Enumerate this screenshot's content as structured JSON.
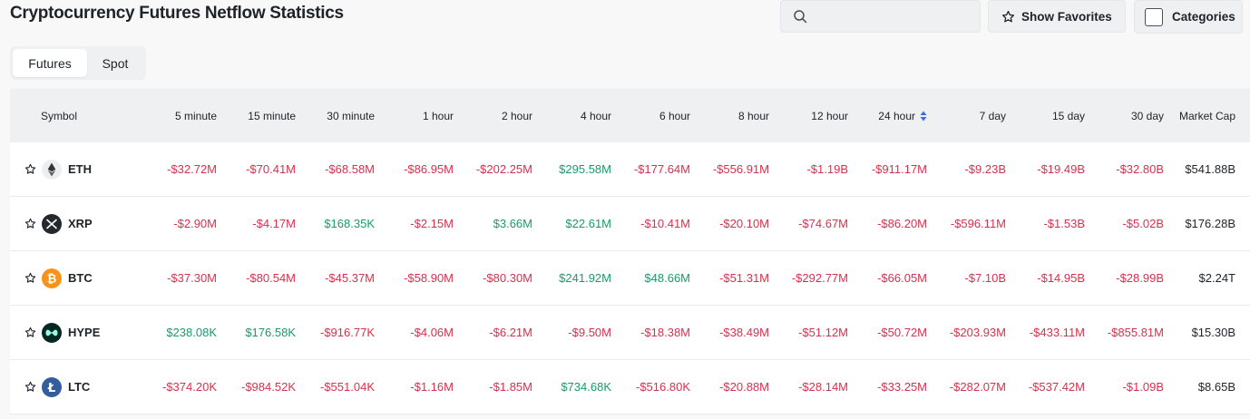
{
  "header": {
    "title": "Cryptocurrency Futures Netflow Statistics",
    "search_placeholder": "",
    "show_favorites_label": "Show Favorites",
    "categories_label": "Categories"
  },
  "tabs": [
    {
      "label": "Futures",
      "active": true
    },
    {
      "label": "Spot",
      "active": false
    }
  ],
  "table": {
    "columns": [
      "Symbol",
      "5 minute",
      "15 minute",
      "30 minute",
      "1 hour",
      "2 hour",
      "4 hour",
      "6 hour",
      "8 hour",
      "12 hour",
      "24 hour",
      "7 day",
      "15 day",
      "30 day",
      "Market Cap"
    ],
    "sorted_column": "24 hour",
    "rows": [
      {
        "symbol": "ETH",
        "icon": "eth-coin-icon",
        "values": [
          "-$32.72M",
          "-$70.41M",
          "-$68.58M",
          "-$86.95M",
          "-$202.25M",
          "$295.58M",
          "-$177.64M",
          "-$556.91M",
          "-$1.19B",
          "-$911.17M",
          "-$9.23B",
          "-$19.49B",
          "-$32.80B"
        ],
        "market_cap": "$541.88B"
      },
      {
        "symbol": "XRP",
        "icon": "xrp-coin-icon",
        "values": [
          "-$2.90M",
          "-$4.17M",
          "$168.35K",
          "-$2.15M",
          "$3.66M",
          "$22.61M",
          "-$10.41M",
          "-$20.10M",
          "-$74.67M",
          "-$86.20M",
          "-$596.11M",
          "-$1.53B",
          "-$5.02B"
        ],
        "market_cap": "$176.28B"
      },
      {
        "symbol": "BTC",
        "icon": "btc-coin-icon",
        "values": [
          "-$37.30M",
          "-$80.54M",
          "-$45.37M",
          "-$58.90M",
          "-$80.30M",
          "$241.92M",
          "$48.66M",
          "-$51.31M",
          "-$292.77M",
          "-$66.05M",
          "-$7.10B",
          "-$14.95B",
          "-$28.99B"
        ],
        "market_cap": "$2.24T"
      },
      {
        "symbol": "HYPE",
        "icon": "hype-coin-icon",
        "values": [
          "$238.08K",
          "$176.58K",
          "-$916.77K",
          "-$4.06M",
          "-$6.21M",
          "-$9.50M",
          "-$18.38M",
          "-$38.49M",
          "-$51.12M",
          "-$50.72M",
          "-$203.93M",
          "-$433.11M",
          "-$855.81M"
        ],
        "market_cap": "$15.30B"
      },
      {
        "symbol": "LTC",
        "icon": "ltc-coin-icon",
        "values": [
          "-$374.20K",
          "-$984.52K",
          "-$551.04K",
          "-$1.16M",
          "-$1.85M",
          "$734.68K",
          "-$516.80K",
          "-$20.88M",
          "-$28.14M",
          "-$33.25M",
          "-$282.07M",
          "-$537.42M",
          "-$1.09B"
        ],
        "market_cap": "$8.65B"
      }
    ]
  },
  "colors": {
    "negative": "#d9304e",
    "positive": "#1a9a6c",
    "background": "#f8f8f8",
    "header_bg": "#eef0f2"
  }
}
